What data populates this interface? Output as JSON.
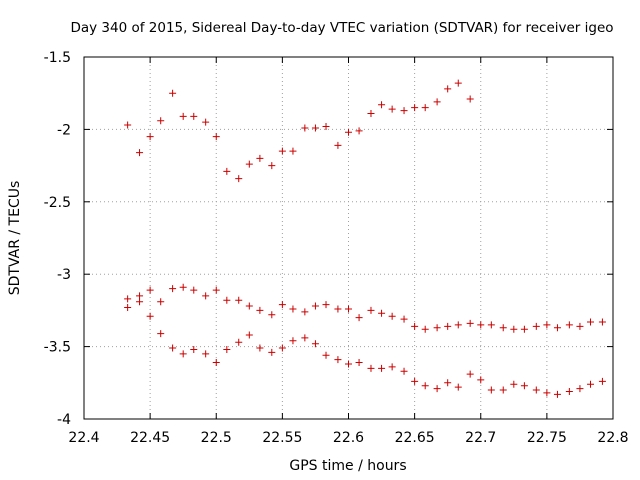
{
  "chart_data": {
    "type": "scatter",
    "title": "Day 340 of 2015, Sidereal Day-to-day VTEC variation (SDTVAR) for receiver igeo",
    "xlabel": "GPS time / hours",
    "ylabel": "SDTVAR / TECUs",
    "xlim": [
      22.4,
      22.8
    ],
    "ylim": [
      -4,
      -1.5
    ],
    "grid": true,
    "xticks": [
      22.4,
      22.45,
      22.5,
      22.55,
      22.6,
      22.65,
      22.7,
      22.75,
      22.8
    ],
    "xtick_labels": [
      "22.4",
      "22.45",
      "22.5",
      "22.55",
      "22.6",
      "22.65",
      "22.7",
      "22.75",
      "22.8"
    ],
    "yticks": [
      -4,
      -3.5,
      -3,
      -2.5,
      -2,
      -1.5
    ],
    "ytick_labels": [
      "-4",
      "-3.5",
      "-3",
      "-2.5",
      "-2",
      "-1.5"
    ],
    "marker": "+",
    "marker_color": "#cc0000",
    "series": [
      {
        "name": "upper",
        "x": [
          22.433,
          22.442,
          22.45,
          22.458,
          22.467,
          22.475,
          22.483,
          22.492,
          22.5,
          22.508,
          22.517,
          22.525,
          22.533,
          22.542,
          22.55,
          22.558,
          22.567,
          22.575,
          22.583,
          22.592,
          22.6,
          22.608,
          22.617,
          22.625,
          22.633,
          22.642,
          22.65,
          22.658,
          22.667,
          22.675,
          22.683,
          22.692
        ],
        "y": [
          -1.97,
          -2.16,
          -2.05,
          -1.94,
          -1.75,
          -1.91,
          -1.91,
          -1.95,
          -2.05,
          -2.29,
          -2.34,
          -2.24,
          -2.2,
          -2.25,
          -2.15,
          -2.15,
          -1.99,
          -1.99,
          -1.98,
          -2.11,
          -2.02,
          -2.01,
          -1.89,
          -1.83,
          -1.86,
          -1.87,
          -1.85,
          -1.85,
          -1.81,
          -1.72,
          -1.68,
          -1.79
        ]
      },
      {
        "name": "middle",
        "x": [
          22.433,
          22.433,
          22.442,
          22.442,
          22.45,
          22.458,
          22.467,
          22.475,
          22.483,
          22.492,
          22.5,
          22.508,
          22.517,
          22.525,
          22.533,
          22.542,
          22.55,
          22.558,
          22.567,
          22.575,
          22.583,
          22.592,
          22.6,
          22.608,
          22.617,
          22.625,
          22.633,
          22.642,
          22.65,
          22.658,
          22.667,
          22.675,
          22.683,
          22.692,
          22.7,
          22.708,
          22.717,
          22.725,
          22.733,
          22.742,
          22.75,
          22.758,
          22.767,
          22.775,
          22.783,
          22.792
        ],
        "y": [
          -3.17,
          -3.23,
          -3.15,
          -3.19,
          -3.11,
          -3.19,
          -3.1,
          -3.09,
          -3.11,
          -3.15,
          -3.11,
          -3.18,
          -3.18,
          -3.22,
          -3.25,
          -3.28,
          -3.21,
          -3.24,
          -3.26,
          -3.22,
          -3.21,
          -3.24,
          -3.24,
          -3.3,
          -3.25,
          -3.27,
          -3.29,
          -3.31,
          -3.36,
          -3.38,
          -3.37,
          -3.36,
          -3.35,
          -3.34,
          -3.35,
          -3.35,
          -3.37,
          -3.38,
          -3.38,
          -3.36,
          -3.35,
          -3.37,
          -3.35,
          -3.36,
          -3.33,
          -3.33
        ]
      },
      {
        "name": "lower",
        "x": [
          22.45,
          22.458,
          22.467,
          22.475,
          22.483,
          22.492,
          22.5,
          22.508,
          22.517,
          22.525,
          22.533,
          22.542,
          22.55,
          22.558,
          22.567,
          22.575,
          22.583,
          22.592,
          22.6,
          22.608,
          22.617,
          22.625,
          22.633,
          22.642,
          22.65,
          22.658,
          22.667,
          22.675,
          22.683,
          22.692,
          22.7,
          22.708,
          22.717,
          22.725,
          22.733,
          22.742,
          22.75,
          22.758,
          22.767,
          22.775,
          22.783,
          22.792
        ],
        "y": [
          -3.29,
          -3.41,
          -3.51,
          -3.55,
          -3.52,
          -3.55,
          -3.61,
          -3.52,
          -3.47,
          -3.42,
          -3.51,
          -3.54,
          -3.51,
          -3.46,
          -3.44,
          -3.48,
          -3.56,
          -3.59,
          -3.62,
          -3.61,
          -3.65,
          -3.65,
          -3.64,
          -3.67,
          -3.74,
          -3.77,
          -3.79,
          -3.75,
          -3.78,
          -3.69,
          -3.73,
          -3.8,
          -3.8,
          -3.76,
          -3.77,
          -3.8,
          -3.82,
          -3.83,
          -3.81,
          -3.79,
          -3.76,
          -3.74
        ]
      }
    ]
  }
}
